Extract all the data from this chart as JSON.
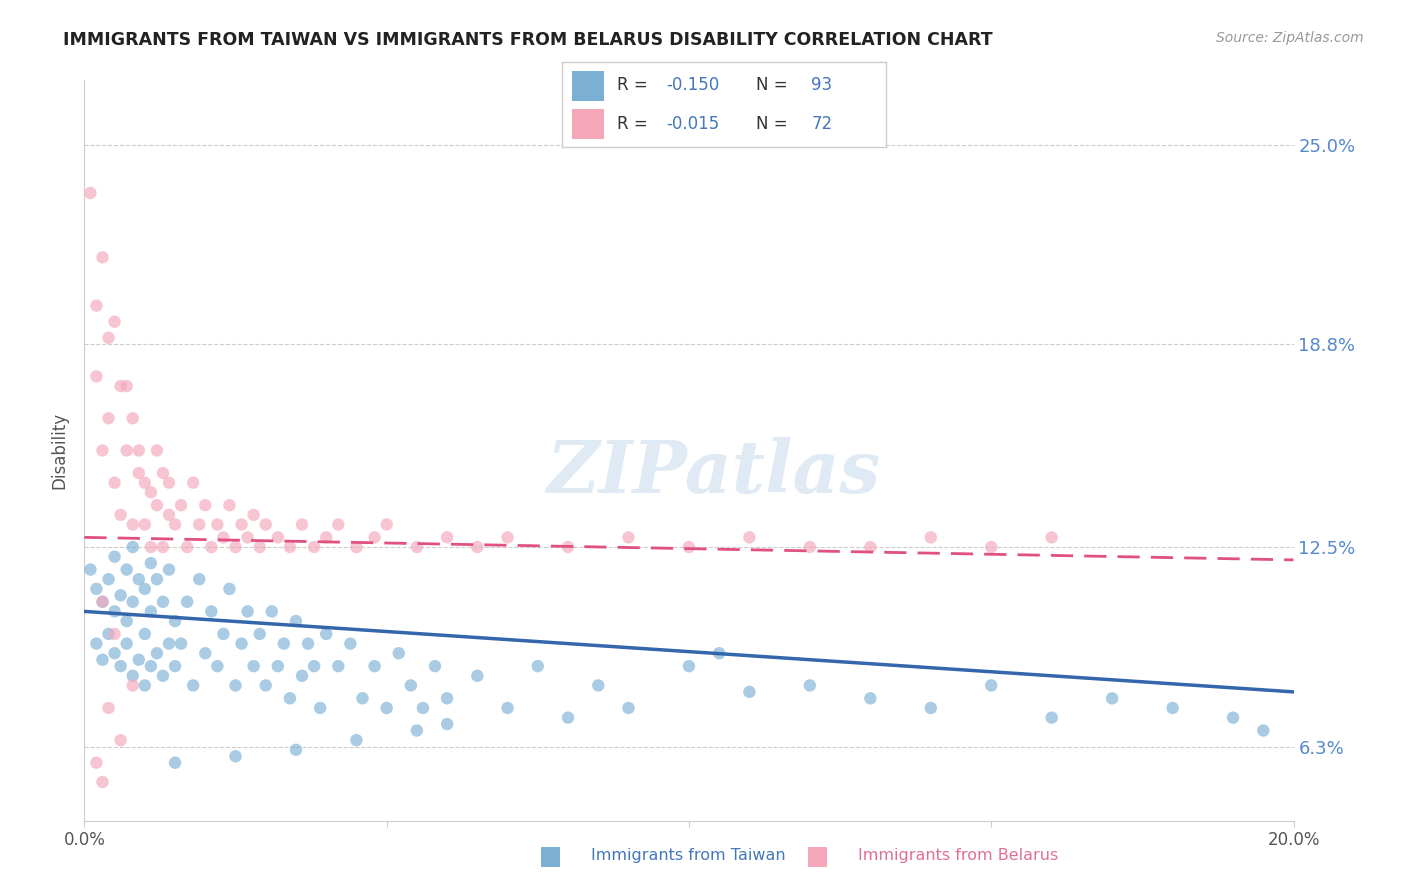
{
  "title": "IMMIGRANTS FROM TAIWAN VS IMMIGRANTS FROM BELARUS DISABILITY CORRELATION CHART",
  "source": "Source: ZipAtlas.com",
  "ylabel": "Disability",
  "xlim": [
    0.0,
    0.2
  ],
  "ylim": [
    0.04,
    0.27
  ],
  "yticks": [
    0.063,
    0.125,
    0.188,
    0.25
  ],
  "ytick_labels": [
    "6.3%",
    "12.5%",
    "18.8%",
    "25.0%"
  ],
  "xticks": [
    0.0,
    0.05,
    0.1,
    0.15,
    0.2
  ],
  "xtick_labels": [
    "0.0%",
    "",
    "",
    "",
    "20.0%"
  ],
  "taiwan_color": "#7BAFD4",
  "belarus_color": "#F4A7B9",
  "taiwan_R": -0.15,
  "taiwan_N": 93,
  "belarus_R": -0.015,
  "belarus_N": 72,
  "taiwan_line_color": "#3366AA",
  "belarus_line_color": "#E05080",
  "watermark": "ZIPatlas",
  "background_color": "#FFFFFF",
  "grid_color": "#CCCCCC",
  "taiwan_scatter_x": [
    0.001,
    0.002,
    0.002,
    0.003,
    0.003,
    0.004,
    0.004,
    0.005,
    0.005,
    0.005,
    0.006,
    0.006,
    0.007,
    0.007,
    0.007,
    0.008,
    0.008,
    0.008,
    0.009,
    0.009,
    0.01,
    0.01,
    0.01,
    0.011,
    0.011,
    0.011,
    0.012,
    0.012,
    0.013,
    0.013,
    0.014,
    0.014,
    0.015,
    0.015,
    0.016,
    0.017,
    0.018,
    0.019,
    0.02,
    0.021,
    0.022,
    0.023,
    0.024,
    0.025,
    0.026,
    0.027,
    0.028,
    0.029,
    0.03,
    0.031,
    0.032,
    0.033,
    0.034,
    0.035,
    0.036,
    0.037,
    0.038,
    0.039,
    0.04,
    0.042,
    0.044,
    0.046,
    0.048,
    0.05,
    0.052,
    0.054,
    0.056,
    0.058,
    0.06,
    0.065,
    0.07,
    0.075,
    0.08,
    0.085,
    0.09,
    0.1,
    0.105,
    0.11,
    0.12,
    0.13,
    0.14,
    0.15,
    0.16,
    0.17,
    0.18,
    0.19,
    0.195,
    0.06,
    0.055,
    0.045,
    0.035,
    0.025,
    0.015
  ],
  "taiwan_scatter_y": [
    0.118,
    0.112,
    0.095,
    0.108,
    0.09,
    0.115,
    0.098,
    0.105,
    0.092,
    0.122,
    0.088,
    0.11,
    0.095,
    0.102,
    0.118,
    0.085,
    0.108,
    0.125,
    0.09,
    0.115,
    0.082,
    0.098,
    0.112,
    0.088,
    0.105,
    0.12,
    0.092,
    0.115,
    0.085,
    0.108,
    0.095,
    0.118,
    0.088,
    0.102,
    0.095,
    0.108,
    0.082,
    0.115,
    0.092,
    0.105,
    0.088,
    0.098,
    0.112,
    0.082,
    0.095,
    0.105,
    0.088,
    0.098,
    0.082,
    0.105,
    0.088,
    0.095,
    0.078,
    0.102,
    0.085,
    0.095,
    0.088,
    0.075,
    0.098,
    0.088,
    0.095,
    0.078,
    0.088,
    0.075,
    0.092,
    0.082,
    0.075,
    0.088,
    0.078,
    0.085,
    0.075,
    0.088,
    0.072,
    0.082,
    0.075,
    0.088,
    0.092,
    0.08,
    0.082,
    0.078,
    0.075,
    0.082,
    0.072,
    0.078,
    0.075,
    0.072,
    0.068,
    0.07,
    0.068,
    0.065,
    0.062,
    0.06,
    0.058
  ],
  "belarus_scatter_x": [
    0.001,
    0.002,
    0.002,
    0.003,
    0.003,
    0.004,
    0.004,
    0.005,
    0.005,
    0.006,
    0.006,
    0.007,
    0.007,
    0.008,
    0.008,
    0.009,
    0.009,
    0.01,
    0.01,
    0.011,
    0.011,
    0.012,
    0.012,
    0.013,
    0.013,
    0.014,
    0.014,
    0.015,
    0.016,
    0.017,
    0.018,
    0.019,
    0.02,
    0.021,
    0.022,
    0.023,
    0.024,
    0.025,
    0.026,
    0.027,
    0.028,
    0.029,
    0.03,
    0.032,
    0.034,
    0.036,
    0.038,
    0.04,
    0.042,
    0.045,
    0.048,
    0.05,
    0.055,
    0.06,
    0.065,
    0.07,
    0.08,
    0.09,
    0.1,
    0.11,
    0.12,
    0.13,
    0.14,
    0.15,
    0.16,
    0.003,
    0.005,
    0.006,
    0.008,
    0.004,
    0.002,
    0.003
  ],
  "belarus_scatter_y": [
    0.235,
    0.2,
    0.178,
    0.215,
    0.155,
    0.19,
    0.165,
    0.195,
    0.145,
    0.175,
    0.135,
    0.155,
    0.175,
    0.165,
    0.132,
    0.155,
    0.148,
    0.145,
    0.132,
    0.142,
    0.125,
    0.155,
    0.138,
    0.148,
    0.125,
    0.135,
    0.145,
    0.132,
    0.138,
    0.125,
    0.145,
    0.132,
    0.138,
    0.125,
    0.132,
    0.128,
    0.138,
    0.125,
    0.132,
    0.128,
    0.135,
    0.125,
    0.132,
    0.128,
    0.125,
    0.132,
    0.125,
    0.128,
    0.132,
    0.125,
    0.128,
    0.132,
    0.125,
    0.128,
    0.125,
    0.128,
    0.125,
    0.128,
    0.125,
    0.128,
    0.125,
    0.125,
    0.128,
    0.125,
    0.128,
    0.108,
    0.098,
    0.065,
    0.082,
    0.075,
    0.058,
    0.052
  ]
}
